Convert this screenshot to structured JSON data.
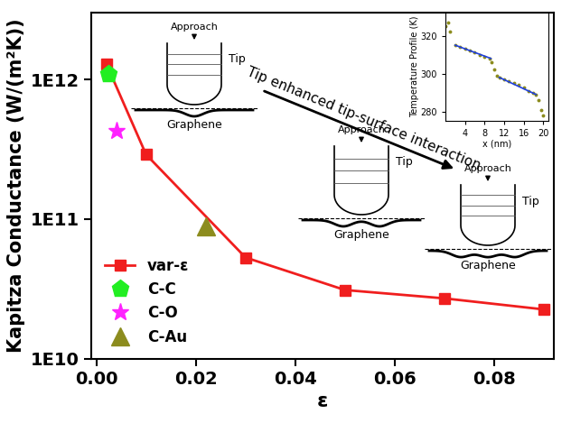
{
  "chart_data": {
    "type": "line",
    "x_label": "ε",
    "y_label": "Kapitza Conductance (W/(m²K))",
    "log": "y",
    "grid": false,
    "legend": "lower left",
    "xlim": [
      -0.001,
      0.092
    ],
    "xticks": [
      {
        "value": 0,
        "label": "0.00"
      },
      {
        "value": 0.02,
        "label": "0.02"
      },
      {
        "value": 0.04,
        "label": "0.04"
      },
      {
        "value": 0.06,
        "label": "0.06"
      },
      {
        "value": 0.08,
        "label": "0.08"
      }
    ],
    "ylim": [
      10000000000,
      3000000000000
    ],
    "yticks": [
      {
        "value": 10000000000,
        "label": "1E10"
      },
      {
        "value": 100000000000,
        "label": "1E11"
      },
      {
        "value": 1000000000000,
        "label": "1E12"
      }
    ],
    "series": [
      {
        "name": "var-ε",
        "type": "line",
        "color": "#f01e1e",
        "marker": "square",
        "line_style": "solid",
        "x": [
          0.002,
          0.01,
          0.03,
          0.05,
          0.07,
          0.09
        ],
        "values": [
          1300000000000,
          290000000000,
          53000000000,
          31000000000,
          27000000000,
          22500000000
        ]
      },
      {
        "name": "C-C",
        "type": "scatter",
        "color": "#22ee22",
        "marker": "pentagon",
        "x": [
          0.0025
        ],
        "values": [
          1100000000000
        ]
      },
      {
        "name": "C-O",
        "type": "scatter",
        "color": "#ff22ff",
        "marker": "star",
        "x": [
          0.004
        ],
        "values": [
          430000000000
        ]
      },
      {
        "name": "C-Au",
        "type": "scatter",
        "color": "#8c8c1e",
        "marker": "triangle",
        "x": [
          0.022
        ],
        "values": [
          88000000000
        ]
      }
    ],
    "annotations": {
      "arrow_text": "Tip enhanced tip-surface interaction",
      "schematics": [
        {
          "approach": "Approach",
          "tip": "Tip",
          "substrate": "Graphene"
        },
        {
          "approach": "Approach",
          "tip": "Tip",
          "substrate": "Graphene"
        },
        {
          "approach": "Approach",
          "tip": "Tip",
          "substrate": "Graphene"
        }
      ]
    },
    "inset": {
      "type": "line",
      "x_label": "x (nm)",
      "y_label": "Temperature Profile (K)",
      "xlim": [
        0,
        21
      ],
      "xticks": [
        4,
        8,
        12,
        16,
        20
      ],
      "ylim": [
        275,
        332
      ],
      "yticks": [
        280,
        300,
        320
      ],
      "series": [
        {
          "type": "scatter",
          "color": "#8c8c1e",
          "marker": "circle",
          "x": [
            0,
            0.5,
            1,
            2,
            3,
            4,
            5,
            6,
            7,
            8,
            9,
            9.5,
            10,
            10.5,
            11,
            12,
            13,
            14,
            15,
            16,
            17,
            18,
            18.5,
            19,
            19.5,
            20
          ],
          "values": [
            325,
            327,
            322,
            315,
            314,
            313,
            312,
            311,
            310,
            309,
            308,
            306,
            302,
            299,
            298,
            297,
            296,
            295,
            294,
            292.5,
            291,
            290,
            289,
            286,
            281,
            278
          ]
        },
        {
          "type": "line",
          "color": "#1f3fdf",
          "line_style": "solid",
          "x": [
            2,
            9.3
          ],
          "values": [
            315,
            308
          ]
        },
        {
          "type": "line",
          "color": "#1f3fdf",
          "line_style": "solid",
          "x": [
            11,
            18.5
          ],
          "values": [
            298,
            289
          ]
        }
      ]
    }
  }
}
